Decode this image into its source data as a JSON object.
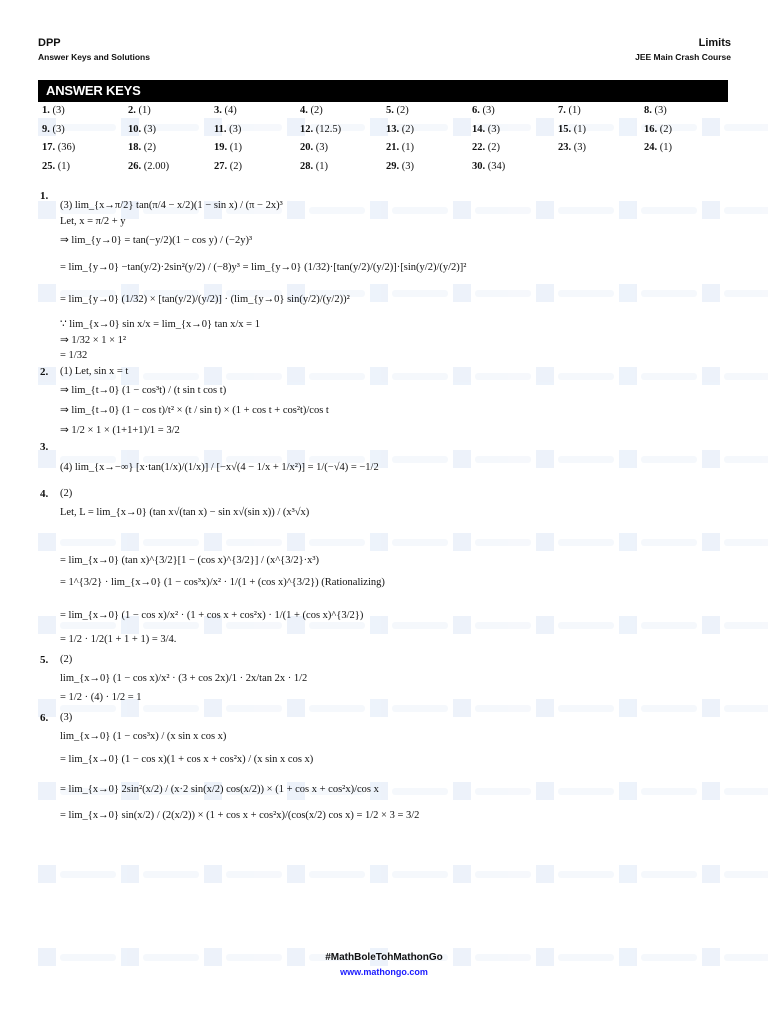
{
  "header": {
    "left_title": "DPP",
    "left_subtitle": "Answer Keys and Solutions",
    "right_title": "Limits",
    "right_subtitle": "JEE Main Crash Course"
  },
  "watermark": "mathongo",
  "answer_keys": {
    "title": "ANSWER KEYS",
    "items": [
      {
        "n": "1.",
        "a": "(3)"
      },
      {
        "n": "2.",
        "a": "(1)"
      },
      {
        "n": "3.",
        "a": "(4)"
      },
      {
        "n": "4.",
        "a": "(2)"
      },
      {
        "n": "5.",
        "a": "(2)"
      },
      {
        "n": "6.",
        "a": "(3)"
      },
      {
        "n": "7.",
        "a": "(1)"
      },
      {
        "n": "8.",
        "a": "(3)"
      },
      {
        "n": "9.",
        "a": "(3)"
      },
      {
        "n": "10.",
        "a": "(3)"
      },
      {
        "n": "11.",
        "a": "(3)"
      },
      {
        "n": "12.",
        "a": "(12.5)"
      },
      {
        "n": "13.",
        "a": "(2)"
      },
      {
        "n": "14.",
        "a": "(3)"
      },
      {
        "n": "15.",
        "a": "(1)"
      },
      {
        "n": "16.",
        "a": "(2)"
      },
      {
        "n": "17.",
        "a": "(36)"
      },
      {
        "n": "18.",
        "a": "(2)"
      },
      {
        "n": "19.",
        "a": "(1)"
      },
      {
        "n": "20.",
        "a": "(3)"
      },
      {
        "n": "21.",
        "a": "(1)"
      },
      {
        "n": "22.",
        "a": "(2)"
      },
      {
        "n": "23.",
        "a": "(3)"
      },
      {
        "n": "24.",
        "a": "(1)"
      },
      {
        "n": "25.",
        "a": "(1)"
      },
      {
        "n": "26.",
        "a": "(2.00)"
      },
      {
        "n": "27.",
        "a": "(2)"
      },
      {
        "n": "28.",
        "a": "(1)"
      },
      {
        "n": "29.",
        "a": "(3)"
      },
      {
        "n": "30.",
        "a": "(34)"
      }
    ]
  },
  "solutions": [
    {
      "num": "1.",
      "lines": [
        "(3) lim_{x→π/2} tan(π/4 − x/2)(1 − sin x) / (π − 2x)³",
        "Let, x = π/2 + y",
        "⇒ lim_{y→0} = tan(−y/2)(1 − cos y) / (−2y)³",
        "= lim_{y→0} −tan(y/2)·2sin²(y/2) / (−8)y³ = lim_{y→0} (1/32)·[tan(y/2)/(y/2)]·[sin(y/2)/(y/2)]²",
        "= lim_{y→0} (1/32) × [tan(y/2)/(y/2)] · (lim_{y→0} sin(y/2)/(y/2))²",
        "∵ lim_{x→0} sin x/x = lim_{x→0} tan x/x = 1",
        "⇒ 1/32 × 1 × 1²",
        "= 1/32"
      ]
    },
    {
      "num": "2.",
      "lines": [
        "(1) Let, sin x = t",
        "⇒ lim_{t→0} (1 − cos³t) / (t sin t cos t)",
        "⇒ lim_{t→0} (1 − cos t)/t² × (t / sin t) × (1 + cos t + cos²t)/cos t",
        "⇒ 1/2 × 1 × (1+1+1)/1 = 3/2"
      ]
    },
    {
      "num": "3.",
      "lines": [
        "(4) lim_{x→−∞} [x·tan(1/x)/(1/x)] / [−x√(4 − 1/x + 1/x²)] = 1/(−√4) = −1/2"
      ]
    },
    {
      "num": "4.",
      "lines": [
        "(2)",
        "Let, L = lim_{x→0} (tan x√(tan x) − sin x√(sin x)) / (x³√x)",
        "= lim_{x→0} (tan x)^{3/2}[1 − (cos x)^{3/2}] / (x^{3/2}·x³)",
        "= 1^{3/2} · lim_{x→0} (1 − cos³x)/x² · 1/(1 + (cos x)^{3/2}) (Rationalizing)",
        "= lim_{x→0} (1 − cos x)/x² · (1 + cos x + cos²x) · 1/(1 + (cos x)^{3/2})",
        "= 1/2 · 1/2(1 + 1 + 1) = 3/4."
      ]
    },
    {
      "num": "5.",
      "lines": [
        "(2)",
        "lim_{x→0} (1 − cos x)/x² · (3 + cos 2x)/1 · 2x/tan 2x · 1/2",
        "= 1/2 · (4) · 1/2 = 1"
      ]
    },
    {
      "num": "6.",
      "lines": [
        "(3)",
        "lim_{x→0} (1 − cos³x) / (x sin x cos x)",
        "= lim_{x→0} (1 − cos x)(1 + cos x + cos²x) / (x sin x cos x)",
        "= lim_{x→0} 2sin²(x/2) / (x·2 sin(x/2) cos(x/2)) × (1 + cos x + cos²x)/cos x",
        "= lim_{x→0} sin(x/2) / (2(x/2)) × (1 + cos x + cos²x)/(cos(x/2) cos x) = 1/2 × 3 = 3/2"
      ]
    }
  ],
  "footer": {
    "hashtag": "#MathBoleTohMathonGo",
    "website": "www.mathongo.com",
    "link_color": "#1a1aff"
  }
}
